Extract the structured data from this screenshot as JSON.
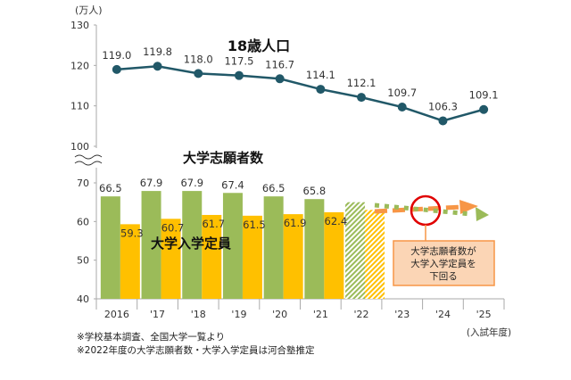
{
  "chart_data": [
    {
      "type": "line",
      "unit": "(万人)",
      "title": "18歳人口",
      "categories": [
        "2016",
        "'17",
        "'18",
        "'19",
        "'20",
        "'21",
        "'22",
        "'23",
        "'24",
        "'25"
      ],
      "values": [
        119.0,
        119.8,
        118.0,
        117.5,
        116.7,
        114.1,
        112.1,
        109.7,
        106.3,
        109.1
      ],
      "ylim": [
        100,
        130
      ],
      "yticks": [
        100,
        110,
        120,
        130
      ],
      "color": "#215868"
    },
    {
      "type": "bar",
      "categories": [
        "2016",
        "'17",
        "'18",
        "'19",
        "'20",
        "'21",
        "'22",
        "'23",
        "'24",
        "'25"
      ],
      "ylim": [
        40,
        70
      ],
      "yticks": [
        40,
        50,
        60,
        70
      ],
      "series": [
        {
          "name": "大学志願者数",
          "values": [
            66.5,
            67.9,
            67.9,
            67.4,
            66.5,
            65.8,
            65.0,
            null,
            null,
            null
          ],
          "color": "#9BBB59",
          "estimated_from_index": 6
        },
        {
          "name": "大学入学定員",
          "values": [
            59.3,
            60.7,
            61.7,
            61.5,
            61.9,
            62.4,
            63.0,
            null,
            null,
            null
          ],
          "color": "#FFC000",
          "estimated_from_index": 6
        }
      ],
      "annotation": "大学志願者数が\n大学入学定員を\n下回る",
      "xlabel": "(入試年度)"
    }
  ],
  "notes": [
    "※学校基本調査、全国大学一覧より",
    "※2022年度の大学志願者数・大学入学定員は河合塾推定"
  ]
}
